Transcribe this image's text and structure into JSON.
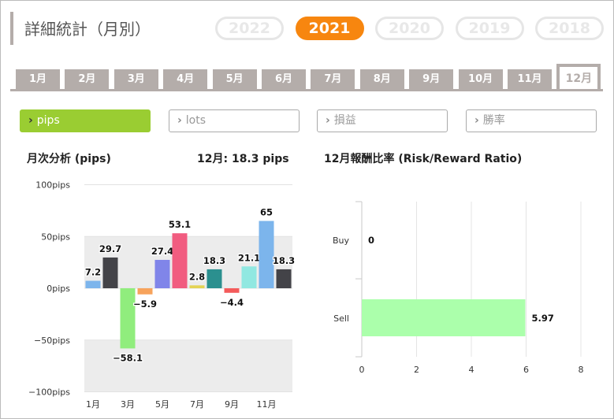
{
  "header": {
    "title": "詳細統計（月別）"
  },
  "years": [
    {
      "label": "2022",
      "active": false
    },
    {
      "label": "2021",
      "active": true
    },
    {
      "label": "2020",
      "active": false
    },
    {
      "label": "2019",
      "active": false
    },
    {
      "label": "2018",
      "active": false
    }
  ],
  "months": [
    "1月",
    "2月",
    "3月",
    "4月",
    "5月",
    "6月",
    "7月",
    "8月",
    "9月",
    "10月",
    "11月",
    "12月"
  ],
  "active_month_index": 11,
  "metrics": [
    {
      "label": "pips",
      "active": true
    },
    {
      "label": "lots",
      "active": false
    },
    {
      "label": "損益",
      "active": false
    },
    {
      "label": "勝率",
      "active": false
    }
  ],
  "colors": {
    "orange": "#f7860f",
    "green": "#9acd32",
    "tab_gray": "#b4adaa"
  },
  "monthly_chart": {
    "title": "月次分析 (pips)",
    "summary": "12月:  18.3 pips"
  },
  "rr_chart": {
    "title": "12月報酬比率 (Risk/Reward Ratio)"
  },
  "chart_data": [
    {
      "type": "bar",
      "title": "月次分析 (pips)",
      "categories": [
        "1月",
        "2月",
        "3月",
        "4月",
        "5月",
        "6月",
        "7月",
        "8月",
        "9月",
        "10月",
        "11月",
        "12月"
      ],
      "x_tick_labels": [
        "1月",
        "3月",
        "5月",
        "7月",
        "9月",
        "11月"
      ],
      "values": [
        7.2,
        29.7,
        -58.1,
        -5.9,
        27.4,
        53.1,
        2.8,
        18.3,
        -4.4,
        21.1,
        65,
        18.3
      ],
      "bar_colors": [
        "#7cb5ec",
        "#434348",
        "#90ed7d",
        "#f7a35c",
        "#8085e9",
        "#f15c80",
        "#e4d354",
        "#2b908f",
        "#f45b5b",
        "#91e8e1",
        "#7cb5ec",
        "#434348"
      ],
      "y_tick_labels": [
        "100pips",
        "50pips",
        "0pips",
        "−50pips",
        "−100pips"
      ],
      "ylim": [
        -100,
        100
      ],
      "grid": true
    },
    {
      "type": "bar",
      "orientation": "horizontal",
      "title": "12月報酬比率 (Risk/Reward Ratio)",
      "categories": [
        "Buy",
        "Sell"
      ],
      "values": [
        0,
        5.97
      ],
      "bar_color": "#abffab",
      "x_ticks": [
        "0",
        "2",
        "4",
        "6",
        "8"
      ],
      "xlim": [
        0,
        8
      ],
      "grid": true
    }
  ]
}
